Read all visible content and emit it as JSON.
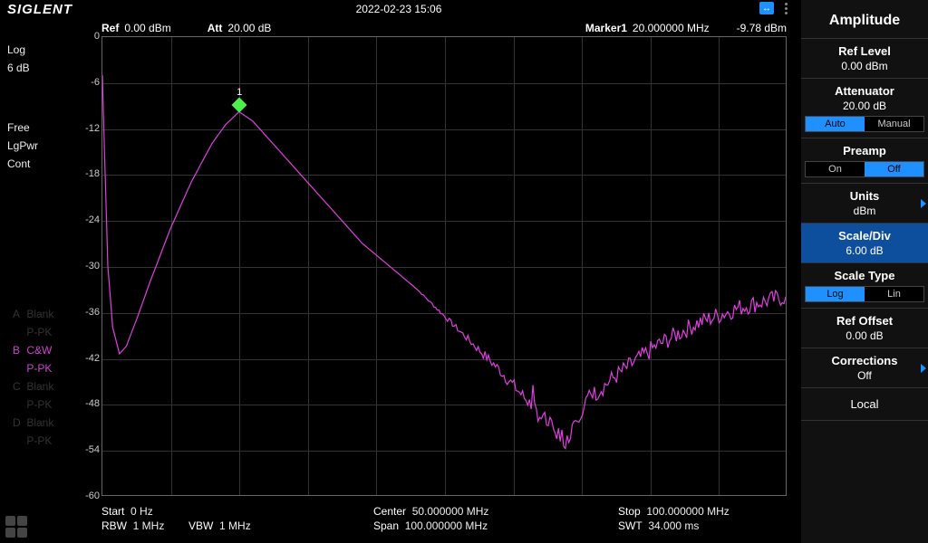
{
  "logo": "SIGLENT",
  "timestamp": "2022-02-23 15:06",
  "usb_label": "↔",
  "header": {
    "ref_lbl": "Ref",
    "ref_val": "0.00 dBm",
    "att_lbl": "Att",
    "att_val": "20.00 dB",
    "marker_lbl": "Marker1",
    "marker_freq": "20.000000 MHz",
    "marker_amp": "-9.78 dBm"
  },
  "left": {
    "yscale": "Log",
    "div": "6 dB",
    "trig": "Free",
    "det": "LgPwr",
    "sweep": "Cont"
  },
  "traces": [
    {
      "letter": "A",
      "name": "Blank",
      "det": "P-PK",
      "active": false,
      "color": "#333"
    },
    {
      "letter": "B",
      "name": "C&W",
      "det": "P-PK",
      "active": true,
      "color": "#d040d0"
    },
    {
      "letter": "C",
      "name": "Blank",
      "det": "P-PK",
      "active": false,
      "color": "#333"
    },
    {
      "letter": "D",
      "name": "Blank",
      "det": "P-PK",
      "active": false,
      "color": "#333"
    }
  ],
  "chart": {
    "type": "line",
    "xlim": [
      0,
      100
    ],
    "ylim": [
      -60,
      0
    ],
    "ytick_step": 6,
    "yticks": [
      0,
      -6,
      -12,
      -18,
      -24,
      -30,
      -36,
      -42,
      -48,
      -54,
      -60
    ],
    "xdivs": 10,
    "ydivs": 10,
    "grid_color": "#333333",
    "border_color": "#666666",
    "background_color": "#000000",
    "trace_color": "#e040e0",
    "trace_width": 1.2,
    "marker": {
      "n": "1",
      "x_mhz": 20.0,
      "y_dbm": -9.78,
      "color": "#4cf04c"
    },
    "data": [
      [
        0.0,
        -5
      ],
      [
        0.3,
        -15
      ],
      [
        0.8,
        -30
      ],
      [
        1.5,
        -38
      ],
      [
        2.5,
        -41.5
      ],
      [
        3.5,
        -40.5
      ],
      [
        5,
        -37
      ],
      [
        7,
        -32
      ],
      [
        10,
        -25
      ],
      [
        13,
        -19
      ],
      [
        16,
        -14
      ],
      [
        18,
        -11.5
      ],
      [
        20,
        -9.78
      ],
      [
        22,
        -11
      ],
      [
        24,
        -13
      ],
      [
        27,
        -16
      ],
      [
        30,
        -19
      ],
      [
        34,
        -23
      ],
      [
        38,
        -27
      ],
      [
        42,
        -30
      ],
      [
        46,
        -33
      ],
      [
        50,
        -36.5
      ],
      [
        54,
        -40
      ],
      [
        58,
        -43.5
      ],
      [
        60,
        -45.5
      ],
      [
        62,
        -47.5
      ],
      [
        64,
        -49.5
      ],
      [
        65.5,
        -51
      ],
      [
        66.5,
        -51.5
      ],
      [
        68,
        -53
      ],
      [
        69,
        -50
      ],
      [
        70,
        -49
      ],
      [
        71,
        -47.5
      ],
      [
        73,
        -46
      ],
      [
        75,
        -44.5
      ],
      [
        78,
        -42.5
      ],
      [
        81,
        -40.5
      ],
      [
        84,
        -39
      ],
      [
        87,
        -37.5
      ],
      [
        90,
        -36.5
      ],
      [
        93,
        -35.5
      ],
      [
        96,
        -34.8
      ],
      [
        100,
        -34
      ]
    ],
    "noise_amp": 1.2,
    "noise_start_x": 45
  },
  "footer": {
    "start_lbl": "Start",
    "start_val": "0 Hz",
    "center_lbl": "Center",
    "center_val": "50.000000 MHz",
    "stop_lbl": "Stop",
    "stop_val": "100.000000 MHz",
    "rbw_lbl": "RBW",
    "rbw_val": "1 MHz",
    "vbw_lbl": "VBW",
    "vbw_val": "1 MHz",
    "span_lbl": "Span",
    "span_val": "100.000000 MHz",
    "swt_lbl": "SWT",
    "swt_val": "34.000 ms"
  },
  "panel": {
    "title": "Amplitude",
    "ref_level": {
      "label": "Ref Level",
      "value": "0.00 dBm"
    },
    "attenuator": {
      "label": "Attenuator",
      "value": "20.00 dB",
      "opt_a": "Auto",
      "opt_b": "Manual",
      "sel": "a"
    },
    "preamp": {
      "label": "Preamp",
      "opt_a": "On",
      "opt_b": "Off",
      "sel": "b"
    },
    "units": {
      "label": "Units",
      "value": "dBm"
    },
    "scale_div": {
      "label": "Scale/Div",
      "value": "6.00 dB"
    },
    "scale_type": {
      "label": "Scale Type",
      "opt_a": "Log",
      "opt_b": "Lin",
      "sel": "a"
    },
    "ref_offset": {
      "label": "Ref Offset",
      "value": "0.00 dB"
    },
    "corrections": {
      "label": "Corrections",
      "value": "Off"
    },
    "local": "Local"
  }
}
